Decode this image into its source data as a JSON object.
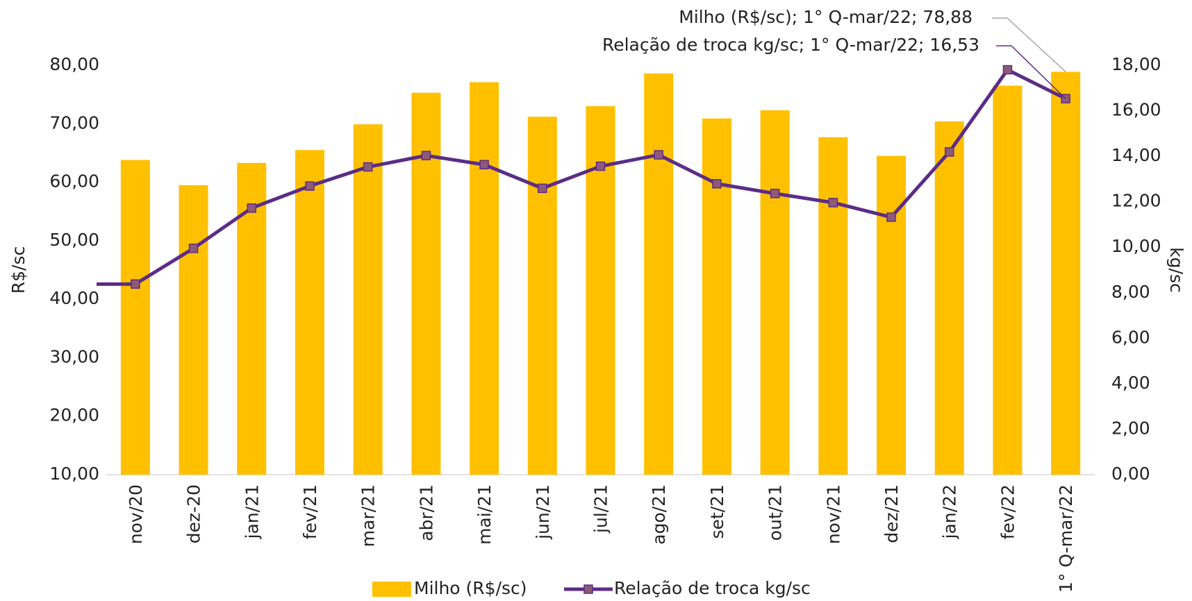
{
  "chart_data": {
    "type": "bar-line",
    "categories": [
      "nov/20",
      "dez-20",
      "jan/21",
      "fev/21",
      "mar/21",
      "abr/21",
      "mai/21",
      "jun/21",
      "jul/21",
      "ago/21",
      "set/21",
      "out/21",
      "nov/21",
      "dez/21",
      "jan/22",
      "fev/22",
      "1° Q-mar/22"
    ],
    "series": [
      {
        "name": "Milho (R$/sc)",
        "type": "bar",
        "color": "#ffc000",
        "values": [
          63.8,
          59.5,
          63.3,
          65.5,
          69.9,
          75.3,
          77.1,
          71.2,
          73.0,
          78.6,
          70.9,
          72.3,
          67.7,
          64.5,
          70.4,
          76.5,
          78.88
        ]
      },
      {
        "name": "Relação de troca kg/sc",
        "type": "line",
        "axis": "y2",
        "color": "#5b2d86",
        "marker_color": "#8e5a78",
        "values": [
          8.38,
          9.95,
          11.72,
          12.69,
          13.53,
          14.03,
          13.63,
          12.59,
          13.56,
          14.06,
          12.79,
          12.36,
          11.96,
          11.32,
          14.19,
          17.8,
          16.53
        ]
      }
    ],
    "ylabel": "R$/sc",
    "y2label": "kg/sc",
    "ylim": [
      10,
      80
    ],
    "yticks": [
      {
        "value": 10,
        "label": "10,00"
      },
      {
        "value": 20,
        "label": "20,00"
      },
      {
        "value": 30,
        "label": "30,00"
      },
      {
        "value": 40,
        "label": "40,00"
      },
      {
        "value": 50,
        "label": "50,00"
      },
      {
        "value": 60,
        "label": "60,00"
      },
      {
        "value": 70,
        "label": "70,00"
      },
      {
        "value": 80,
        "label": "80,00"
      }
    ],
    "y2lim": [
      0,
      18
    ],
    "y2ticks": [
      {
        "value": 0,
        "label": "0,00"
      },
      {
        "value": 2,
        "label": "2,00"
      },
      {
        "value": 4,
        "label": "4,00"
      },
      {
        "value": 6,
        "label": "6,00"
      },
      {
        "value": 8,
        "label": "8,00"
      },
      {
        "value": 10,
        "label": "10,00"
      },
      {
        "value": 12,
        "label": "12,00"
      },
      {
        "value": 14,
        "label": "14,00"
      },
      {
        "value": 16,
        "label": "16,00"
      },
      {
        "value": 18,
        "label": "18,00"
      }
    ],
    "annotations": [
      "Milho (R$/sc); 1° Q-mar/22; 78,88",
      "Relação de troca kg/sc; 1° Q-mar/22; 16,53"
    ],
    "legend": "bottom"
  }
}
